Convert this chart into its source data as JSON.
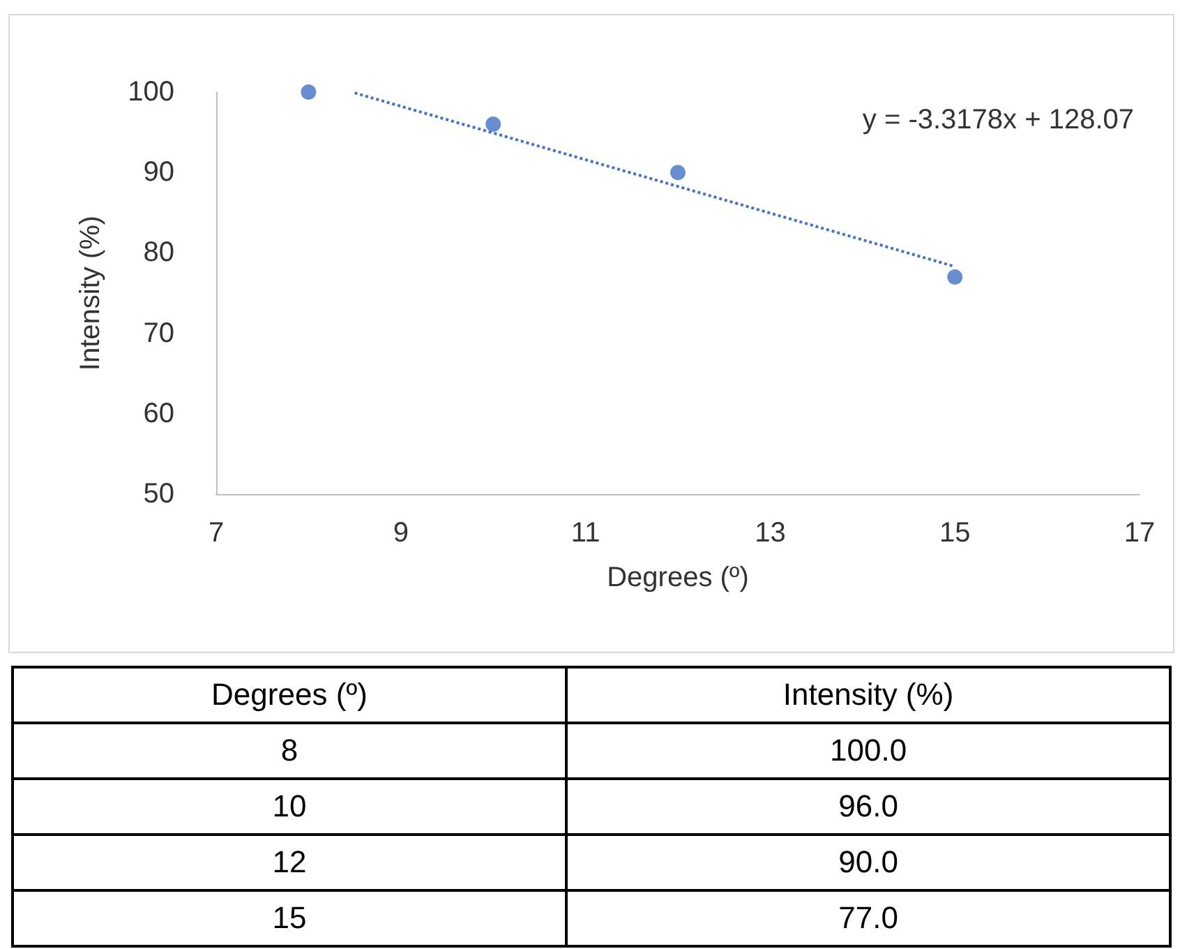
{
  "chart_data": [
    {
      "type": "scatter",
      "xlabel": "Degrees (º)",
      "ylabel": "Intensity (%)",
      "x": [
        8,
        10,
        12,
        15
      ],
      "series": [
        {
          "color": "#4472c4",
          "values": [
            100,
            96,
            90,
            77
          ]
        },
        {
          "type": "line",
          "x": [
            8.5,
            15
          ],
          "values": [
            99.9,
            78.3
          ],
          "color": "#4472c4",
          "line_style": "dotted",
          "marker": "none"
        }
      ],
      "annotations": [
        "y = -3.3178x + 128.07"
      ],
      "marker": "circle",
      "xlim": [
        7,
        17
      ],
      "xticks": [
        7,
        9,
        11,
        13,
        15,
        17
      ],
      "ylim": [
        50,
        100
      ],
      "yticks": [
        50,
        60,
        70,
        80,
        90,
        100
      ]
    },
    {
      "type": "other",
      "xlabel": "Degrees (º)",
      "ylabel": "Intensity (%)",
      "categories": [
        "8",
        "10",
        "12",
        "15"
      ],
      "annotations": [
        "100.0",
        "96.0",
        "90.0",
        "77.0"
      ]
    }
  ]
}
